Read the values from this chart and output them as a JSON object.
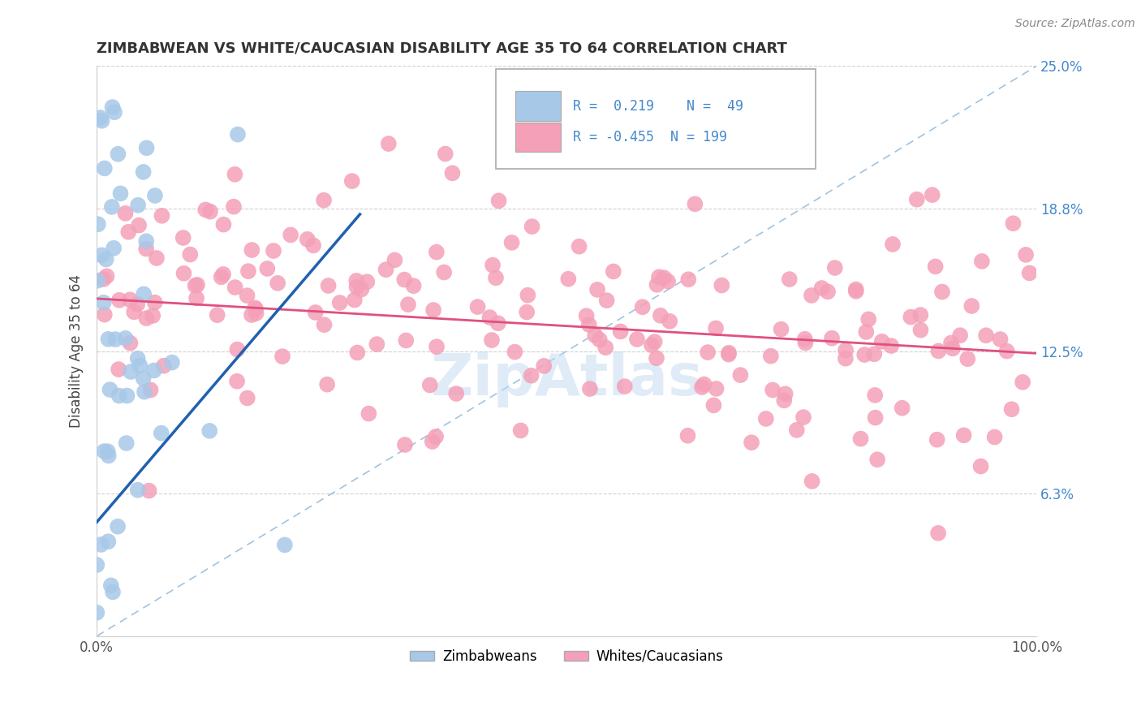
{
  "title": "ZIMBABWEAN VS WHITE/CAUCASIAN DISABILITY AGE 35 TO 64 CORRELATION CHART",
  "source": "Source: ZipAtlas.com",
  "ylabel": "Disability Age 35 to 64",
  "xlim": [
    0,
    100
  ],
  "ylim": [
    0,
    25
  ],
  "yticks": [
    0,
    6.25,
    12.5,
    18.75,
    25.0
  ],
  "ytick_labels": [
    "",
    "6.3%",
    "12.5%",
    "18.8%",
    "25.0%"
  ],
  "blue_R": 0.219,
  "blue_N": 49,
  "pink_R": -0.455,
  "pink_N": 199,
  "blue_color": "#a8c8e8",
  "pink_color": "#f4a0b8",
  "blue_line_color": "#2060b0",
  "pink_line_color": "#e05080",
  "legend_blue_label": "Zimbabweans",
  "legend_pink_label": "Whites/Caucasians",
  "background_color": "#ffffff",
  "grid_color": "#cccccc",
  "title_color": "#333333",
  "watermark_color": "#c0d8f0",
  "right_axis_color": "#4488cc",
  "seed": 7
}
